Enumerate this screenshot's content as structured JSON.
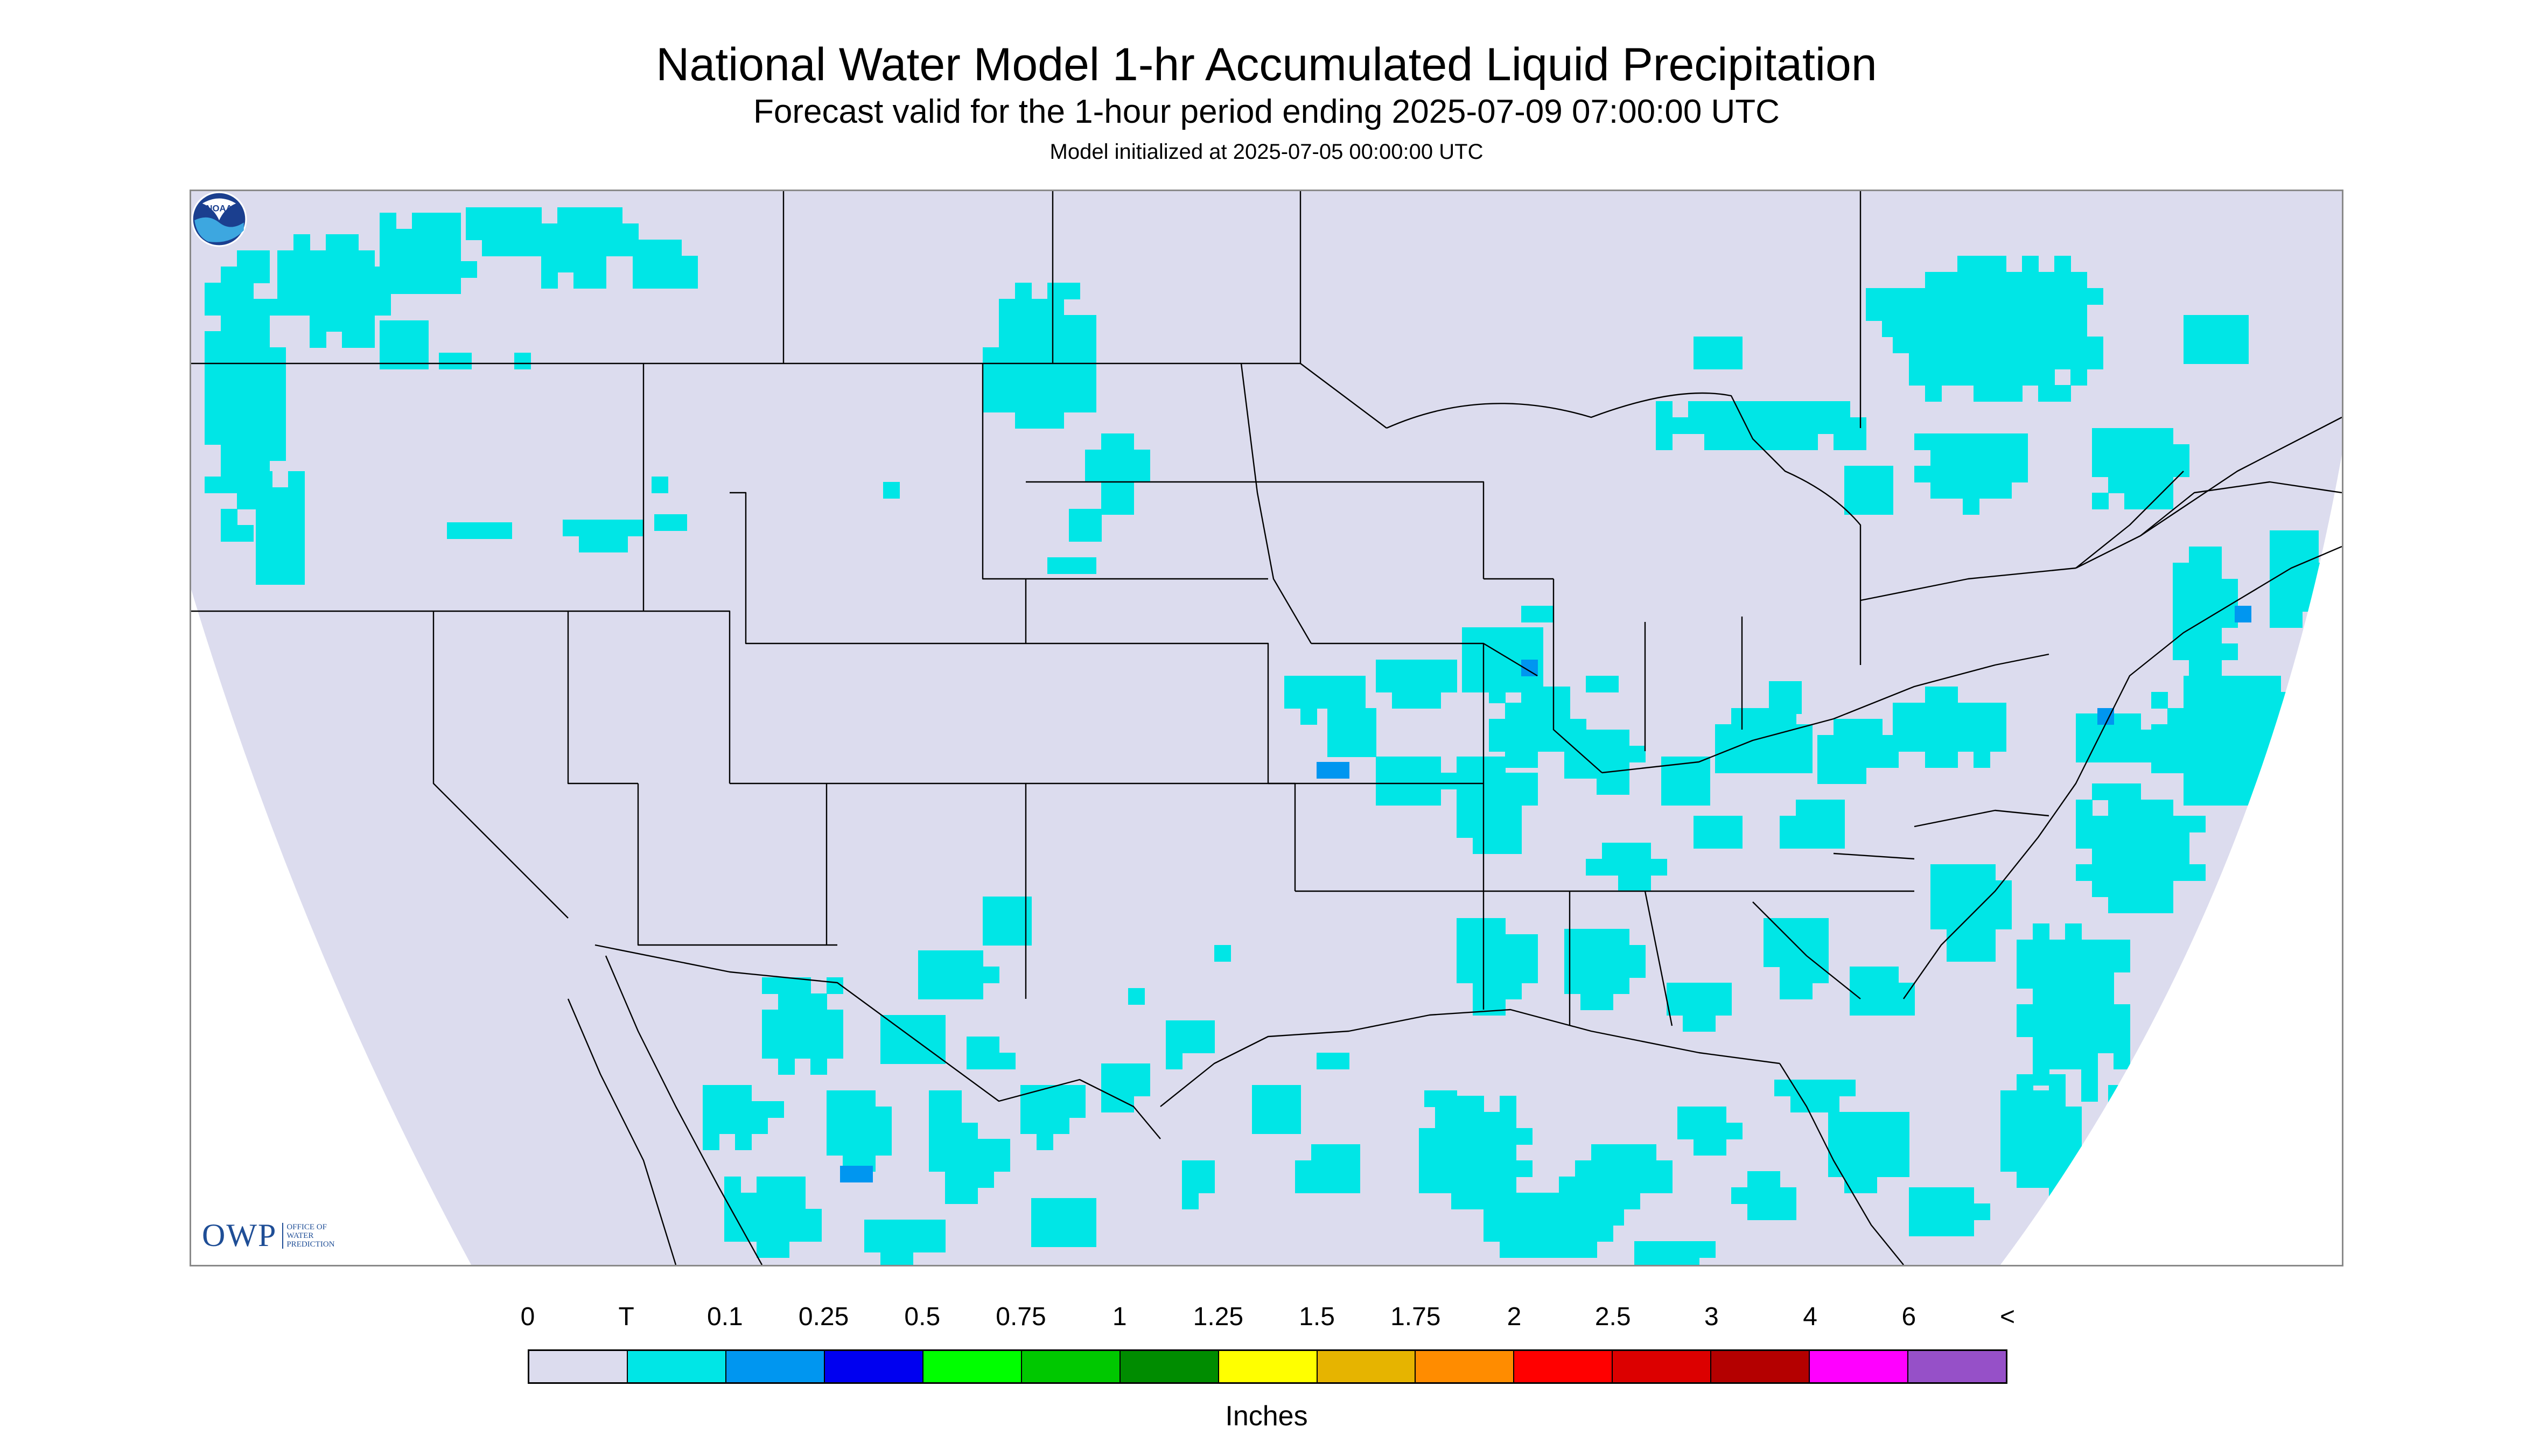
{
  "header": {
    "title": "National Water Model 1-hr Accumulated Liquid Precipitation",
    "subtitle": "Forecast valid for the 1-hour period ending 2025-07-09 07:00:00 UTC",
    "init": "Model initialized at 2025-07-05 00:00:00 UTC"
  },
  "logos": {
    "owp_text": "OWP",
    "owp_sub_lines": [
      "OFFICE OF",
      "WATER",
      "PREDICTION"
    ],
    "noaa_text": "NOAA"
  },
  "map": {
    "background_color": "#dcdcee",
    "outside_color": "#ffffff",
    "boundary_color": "#000000"
  },
  "legend": {
    "labels": [
      "0",
      "T",
      "0.1",
      "0.25",
      "0.5",
      "0.75",
      "1",
      "1.25",
      "1.5",
      "1.75",
      "2",
      "2.5",
      "3",
      "4",
      "6",
      "<"
    ],
    "colors": [
      "#dcdcee",
      "#00e6e6",
      "#0096f0",
      "#0000f0",
      "#00ff00",
      "#00c800",
      "#008c00",
      "#ffff00",
      "#e6b400",
      "#ff8c00",
      "#ff0000",
      "#dc0000",
      "#b40000",
      "#ff00ff",
      "#9650c8"
    ],
    "units": "Inches"
  }
}
